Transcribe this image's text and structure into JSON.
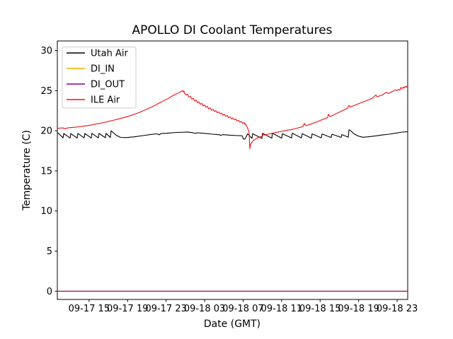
{
  "figure": {
    "title": "APOLLO DI Coolant Temperatures",
    "background": "#ffffff"
  },
  "chart_data": {
    "type": "line",
    "title": "APOLLO DI Coolant Temperatures",
    "xlabel": "Date (GMT)",
    "ylabel": "Temperature (C)",
    "x_unit": "hours since 09-17 00:00 GMT",
    "xlim": [
      11.7,
      48.1
    ],
    "ylim": [
      -1.03,
      31.2
    ],
    "grid": false,
    "legend_position": "upper left",
    "x_ticks": {
      "values": [
        15,
        19,
        23,
        27,
        31,
        35,
        39,
        43,
        47
      ],
      "labels": [
        "09-17 15",
        "09-17 19",
        "09-17 23",
        "09-18 03",
        "09-18 07",
        "09-18 11",
        "09-18 15",
        "09-18 19",
        "09-18 23"
      ]
    },
    "y_ticks": {
      "values": [
        0,
        5,
        10,
        15,
        20,
        25,
        30
      ],
      "labels": [
        "0",
        "5",
        "10",
        "15",
        "20",
        "25",
        "30"
      ]
    },
    "series": [
      {
        "name": "Utah Air",
        "color": "#000000",
        "points": [
          [
            11.7,
            19.8
          ],
          [
            12.3,
            19.12
          ],
          [
            12.36,
            19.66
          ],
          [
            13.03,
            19.1
          ],
          [
            13.1,
            19.65
          ],
          [
            13.76,
            19.1
          ],
          [
            13.83,
            19.67
          ],
          [
            14.49,
            19.12
          ],
          [
            14.56,
            19.66
          ],
          [
            15.22,
            19.1
          ],
          [
            15.29,
            19.68
          ],
          [
            15.96,
            19.12
          ],
          [
            16.03,
            19.66
          ],
          [
            16.69,
            19.14
          ],
          [
            16.76,
            19.68
          ],
          [
            17.21,
            19.16
          ],
          [
            17.29,
            20.0
          ],
          [
            17.8,
            19.45
          ],
          [
            18.25,
            19.18
          ],
          [
            18.83,
            19.15
          ],
          [
            19.72,
            19.25
          ],
          [
            20.6,
            19.4
          ],
          [
            21.48,
            19.55
          ],
          [
            22.07,
            19.62
          ],
          [
            22.29,
            19.5
          ],
          [
            22.43,
            19.65
          ],
          [
            23.24,
            19.72
          ],
          [
            24.13,
            19.8
          ],
          [
            24.86,
            19.82
          ],
          [
            25.23,
            19.85
          ],
          [
            25.67,
            19.78
          ],
          [
            26.11,
            19.66
          ],
          [
            26.18,
            19.75
          ],
          [
            26.99,
            19.68
          ],
          [
            27.8,
            19.58
          ],
          [
            28.61,
            19.5
          ],
          [
            28.68,
            19.42
          ],
          [
            28.9,
            19.52
          ],
          [
            29.64,
            19.45
          ],
          [
            30.45,
            19.4
          ],
          [
            30.89,
            19.38
          ],
          [
            31.03,
            18.98
          ],
          [
            31.18,
            18.95
          ],
          [
            31.48,
            19.62
          ],
          [
            31.92,
            19.05
          ],
          [
            31.99,
            19.65
          ],
          [
            32.95,
            19.05
          ],
          [
            33.02,
            19.68
          ],
          [
            33.98,
            19.08
          ],
          [
            34.05,
            19.7
          ],
          [
            35.01,
            19.08
          ],
          [
            35.08,
            19.65
          ],
          [
            36.03,
            19.1
          ],
          [
            36.11,
            19.7
          ],
          [
            37.06,
            19.12
          ],
          [
            37.14,
            19.65
          ],
          [
            38.09,
            19.08
          ],
          [
            38.17,
            19.62
          ],
          [
            39.12,
            19.12
          ],
          [
            39.2,
            19.6
          ],
          [
            40.15,
            19.15
          ],
          [
            40.23,
            19.58
          ],
          [
            41.18,
            19.18
          ],
          [
            41.26,
            19.52
          ],
          [
            41.92,
            19.2
          ],
          [
            42.0,
            20.12
          ],
          [
            42.14,
            20.05
          ],
          [
            42.51,
            19.62
          ],
          [
            43.02,
            19.32
          ],
          [
            43.46,
            19.2
          ],
          [
            43.98,
            19.25
          ],
          [
            44.71,
            19.35
          ],
          [
            45.45,
            19.48
          ],
          [
            46.18,
            19.58
          ],
          [
            46.92,
            19.72
          ],
          [
            47.51,
            19.84
          ],
          [
            47.87,
            19.87
          ],
          [
            48.1,
            19.88
          ]
        ]
      },
      {
        "name": "DI_IN",
        "color": "#ffa500",
        "points": [
          [
            11.7,
            0.0
          ],
          [
            48.1,
            0.0
          ]
        ]
      },
      {
        "name": "DI_OUT",
        "color": "#800080",
        "points": [
          [
            11.7,
            0.0
          ],
          [
            48.1,
            0.0
          ]
        ]
      },
      {
        "name": "ILE Air",
        "color": "#f01010",
        "points": [
          [
            11.7,
            20.3
          ],
          [
            12.21,
            20.36
          ],
          [
            12.58,
            20.26
          ],
          [
            12.73,
            20.35
          ],
          [
            13.1,
            20.4
          ],
          [
            13.54,
            20.44
          ],
          [
            13.98,
            20.5
          ],
          [
            14.42,
            20.57
          ],
          [
            14.86,
            20.65
          ],
          [
            15.3,
            20.74
          ],
          [
            15.74,
            20.84
          ],
          [
            16.19,
            20.95
          ],
          [
            16.63,
            21.06
          ],
          [
            17.07,
            21.18
          ],
          [
            17.51,
            21.3
          ],
          [
            17.95,
            21.44
          ],
          [
            18.39,
            21.58
          ],
          [
            18.83,
            21.72
          ],
          [
            19.27,
            21.88
          ],
          [
            19.72,
            22.06
          ],
          [
            20.16,
            22.26
          ],
          [
            20.6,
            22.48
          ],
          [
            21.04,
            22.72
          ],
          [
            21.48,
            22.96
          ],
          [
            21.92,
            23.22
          ],
          [
            22.36,
            23.5
          ],
          [
            22.8,
            23.78
          ],
          [
            23.24,
            24.05
          ],
          [
            23.61,
            24.32
          ],
          [
            23.98,
            24.55
          ],
          [
            24.27,
            24.7
          ],
          [
            24.49,
            24.84
          ],
          [
            24.64,
            24.95
          ],
          [
            24.72,
            25.02
          ],
          [
            24.79,
            24.85
          ],
          [
            24.86,
            24.95
          ],
          [
            24.93,
            24.65
          ],
          [
            25.08,
            24.45
          ],
          [
            25.23,
            24.58
          ],
          [
            25.37,
            24.18
          ],
          [
            25.52,
            24.3
          ],
          [
            25.67,
            23.94
          ],
          [
            25.82,
            24.06
          ],
          [
            25.96,
            23.72
          ],
          [
            26.11,
            23.84
          ],
          [
            26.26,
            23.5
          ],
          [
            26.4,
            23.62
          ],
          [
            26.55,
            23.3
          ],
          [
            26.7,
            23.42
          ],
          [
            26.85,
            23.1
          ],
          [
            26.99,
            23.22
          ],
          [
            27.14,
            22.92
          ],
          [
            27.29,
            23.04
          ],
          [
            27.43,
            22.74
          ],
          [
            27.58,
            22.86
          ],
          [
            27.73,
            22.56
          ],
          [
            27.87,
            22.68
          ],
          [
            28.02,
            22.4
          ],
          [
            28.17,
            22.52
          ],
          [
            28.32,
            22.24
          ],
          [
            28.46,
            22.36
          ],
          [
            28.61,
            22.1
          ],
          [
            28.76,
            22.2
          ],
          [
            28.9,
            21.94
          ],
          [
            29.05,
            22.05
          ],
          [
            29.2,
            21.8
          ],
          [
            29.34,
            21.9
          ],
          [
            29.49,
            21.64
          ],
          [
            29.64,
            21.75
          ],
          [
            29.79,
            21.5
          ],
          [
            29.93,
            21.6
          ],
          [
            30.08,
            21.36
          ],
          [
            30.23,
            21.46
          ],
          [
            30.37,
            21.22
          ],
          [
            30.52,
            21.32
          ],
          [
            30.67,
            21.08
          ],
          [
            30.81,
            21.16
          ],
          [
            30.96,
            20.94
          ],
          [
            31.11,
            21.02
          ],
          [
            31.18,
            20.8
          ],
          [
            31.25,
            20.88
          ],
          [
            31.33,
            20.65
          ],
          [
            31.4,
            20.52
          ],
          [
            31.48,
            20.28
          ],
          [
            31.55,
            20.05
          ],
          [
            31.62,
            19.82
          ],
          [
            31.7,
            17.75
          ],
          [
            31.77,
            18.28
          ],
          [
            31.92,
            18.58
          ],
          [
            32.06,
            18.78
          ],
          [
            32.28,
            18.96
          ],
          [
            32.5,
            19.1
          ],
          [
            32.8,
            19.24
          ],
          [
            33.02,
            19.34
          ],
          [
            33.09,
            19.72
          ],
          [
            33.17,
            19.44
          ],
          [
            33.46,
            19.54
          ],
          [
            33.83,
            19.64
          ],
          [
            34.27,
            19.76
          ],
          [
            34.71,
            19.86
          ],
          [
            35.15,
            19.96
          ],
          [
            35.67,
            20.08
          ],
          [
            36.18,
            20.2
          ],
          [
            36.7,
            20.36
          ],
          [
            37.21,
            20.52
          ],
          [
            37.36,
            20.92
          ],
          [
            37.51,
            20.66
          ],
          [
            37.73,
            20.7
          ],
          [
            38.24,
            20.92
          ],
          [
            38.76,
            21.16
          ],
          [
            39.27,
            21.42
          ],
          [
            39.79,
            21.66
          ],
          [
            39.86,
            22.06
          ],
          [
            40.01,
            21.78
          ],
          [
            40.3,
            21.92
          ],
          [
            40.82,
            22.22
          ],
          [
            41.33,
            22.52
          ],
          [
            41.85,
            22.82
          ],
          [
            41.99,
            23.16
          ],
          [
            42.14,
            22.96
          ],
          [
            42.36,
            23.06
          ],
          [
            42.88,
            23.32
          ],
          [
            43.39,
            23.56
          ],
          [
            43.9,
            23.8
          ],
          [
            44.42,
            24.06
          ],
          [
            44.79,
            24.46
          ],
          [
            44.93,
            24.24
          ],
          [
            45.45,
            24.46
          ],
          [
            45.89,
            24.8
          ],
          [
            46.04,
            24.64
          ],
          [
            46.33,
            24.8
          ],
          [
            46.63,
            24.96
          ],
          [
            46.85,
            25.1
          ],
          [
            47.0,
            25.0
          ],
          [
            47.14,
            25.16
          ],
          [
            47.29,
            25.06
          ],
          [
            47.37,
            25.4
          ],
          [
            47.51,
            25.26
          ],
          [
            47.66,
            25.46
          ],
          [
            47.73,
            25.32
          ],
          [
            47.87,
            25.56
          ],
          [
            47.95,
            25.42
          ],
          [
            48.1,
            25.62
          ]
        ]
      }
    ],
    "legend": {
      "items": [
        {
          "label": "Utah Air",
          "color": "#000000"
        },
        {
          "label": "DI_IN",
          "color": "#ffa500"
        },
        {
          "label": "DI_OUT",
          "color": "#800080"
        },
        {
          "label": "ILE Air",
          "color": "#f01010"
        }
      ]
    },
    "spine_color": "#000000",
    "legend_border_color": "#cccccc"
  }
}
